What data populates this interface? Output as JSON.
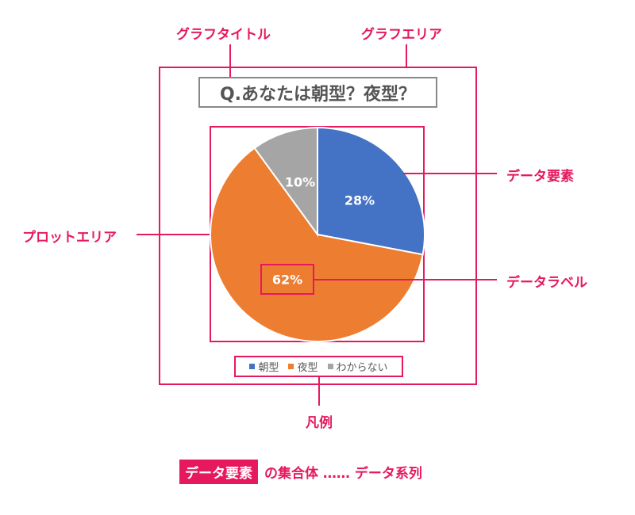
{
  "annotations": {
    "title_label": "グラフタイトル",
    "chart_area_label": "グラフエリア",
    "data_element_label": "データ要素",
    "plot_area_label": "プロットエリア",
    "data_label_label": "データラベル",
    "legend_label": "凡例"
  },
  "footer": {
    "tag": "データ要素",
    "rest": "の集合体 …… データ系列"
  },
  "colors": {
    "accent": "#e6195f",
    "morning": "#4472c4",
    "night": "#ed7d31",
    "unknown": "#a5a5a5"
  },
  "chart_data": {
    "type": "pie",
    "title": "Q.あなたは朝型？夜型？",
    "categories": [
      "朝型",
      "夜型",
      "わからない"
    ],
    "values": [
      28,
      62,
      10
    ],
    "data_labels": [
      "28%",
      "62%",
      "10%"
    ],
    "legend_position": "bottom"
  }
}
